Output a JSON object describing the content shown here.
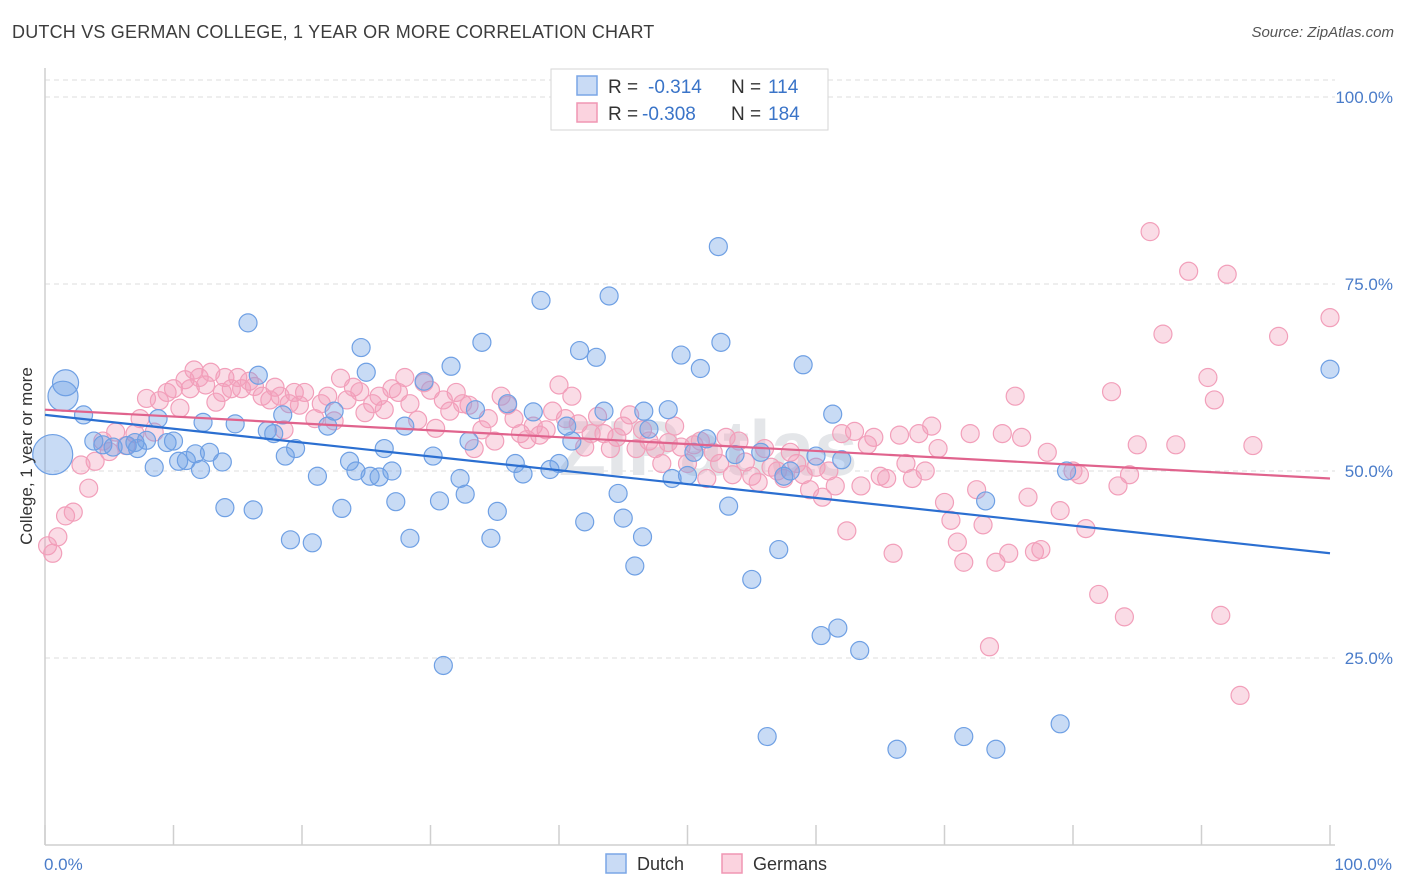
{
  "header": {
    "title": "DUTCH VS GERMAN COLLEGE, 1 YEAR OR MORE CORRELATION CHART",
    "source": "Source: ZipAtlas.com"
  },
  "watermark": "ZIPatlas",
  "legend_box": {
    "rows": [
      {
        "r_label": "R =",
        "r_value": "-0.314",
        "n_label": "N =",
        "n_value": "114"
      },
      {
        "r_label": "R =",
        "r_value": "-0.308",
        "n_label": "N =",
        "n_value": "184"
      }
    ]
  },
  "bottom_legend": [
    "Dutch",
    "Germans"
  ],
  "chart_data": {
    "type": "scatter",
    "ylabel": "College, 1 year or more",
    "xlabel": "",
    "xlim": [
      0,
      100
    ],
    "ylim": [
      0,
      100
    ],
    "x_tick_labels": [
      "0.0%",
      "100.0%"
    ],
    "y_tick_labels": [
      "25.0%",
      "50.0%",
      "75.0%",
      "100.0%"
    ],
    "y_ticks": [
      25,
      50,
      75,
      100
    ],
    "grid": true,
    "legend_position": "top-center",
    "colors": {
      "dutch": "#6fa0e4",
      "dutch_line": "#2b6fd1",
      "germans": "#f29fba",
      "germans_line": "#e0638d"
    },
    "series": [
      {
        "name": "Dutch",
        "trend": [
          [
            0,
            57.5
          ],
          [
            100,
            39.0
          ]
        ],
        "points": [
          [
            0.6,
            52.2
          ],
          [
            1.4,
            60.0
          ],
          [
            1.6,
            61.8
          ],
          [
            3.0,
            57.5
          ],
          [
            3.8,
            54.0
          ],
          [
            4.5,
            53.5
          ],
          [
            5.3,
            53.2
          ],
          [
            6.4,
            53.4
          ],
          [
            7.0,
            53.8
          ],
          [
            7.2,
            53.0
          ],
          [
            7.9,
            54.1
          ],
          [
            8.5,
            50.5
          ],
          [
            8.8,
            57.0
          ],
          [
            9.5,
            53.8
          ],
          [
            10.0,
            54.0
          ],
          [
            10.4,
            51.3
          ],
          [
            11.0,
            51.4
          ],
          [
            11.7,
            52.3
          ],
          [
            12.1,
            50.2
          ],
          [
            12.3,
            56.5
          ],
          [
            12.8,
            52.5
          ],
          [
            13.8,
            51.2
          ],
          [
            14.0,
            45.1
          ],
          [
            14.8,
            56.3
          ],
          [
            15.8,
            69.8
          ],
          [
            16.2,
            44.8
          ],
          [
            16.6,
            62.8
          ],
          [
            17.3,
            55.4
          ],
          [
            17.8,
            55.0
          ],
          [
            18.5,
            57.5
          ],
          [
            18.7,
            52.0
          ],
          [
            19.1,
            40.8
          ],
          [
            19.5,
            53.0
          ],
          [
            20.8,
            40.4
          ],
          [
            21.2,
            49.3
          ],
          [
            22.0,
            56.0
          ],
          [
            22.5,
            58.0
          ],
          [
            23.1,
            45.0
          ],
          [
            23.7,
            51.3
          ],
          [
            24.2,
            50.0
          ],
          [
            24.6,
            66.5
          ],
          [
            25.0,
            63.2
          ],
          [
            25.3,
            49.3
          ],
          [
            26.0,
            49.2
          ],
          [
            26.4,
            53.0
          ],
          [
            27.0,
            50.0
          ],
          [
            27.3,
            45.9
          ],
          [
            28.0,
            56.0
          ],
          [
            28.4,
            41.0
          ],
          [
            29.5,
            62.0
          ],
          [
            30.2,
            52.0
          ],
          [
            30.7,
            46.0
          ],
          [
            31.0,
            24.0
          ],
          [
            31.6,
            64.0
          ],
          [
            32.3,
            49.0
          ],
          [
            32.7,
            46.9
          ],
          [
            33.0,
            54.0
          ],
          [
            33.5,
            58.2
          ],
          [
            34.0,
            67.2
          ],
          [
            34.7,
            41.0
          ],
          [
            35.2,
            44.6
          ],
          [
            36.0,
            59.0
          ],
          [
            36.6,
            51.0
          ],
          [
            37.2,
            49.6
          ],
          [
            38.0,
            57.9
          ],
          [
            38.6,
            72.8
          ],
          [
            39.3,
            50.2
          ],
          [
            40.0,
            51.0
          ],
          [
            40.6,
            56.0
          ],
          [
            41.0,
            54.0
          ],
          [
            41.6,
            66.1
          ],
          [
            42.0,
            43.2
          ],
          [
            42.9,
            65.2
          ],
          [
            43.5,
            58.0
          ],
          [
            43.9,
            73.4
          ],
          [
            44.6,
            47.0
          ],
          [
            45.0,
            43.7
          ],
          [
            45.9,
            37.3
          ],
          [
            46.5,
            41.2
          ],
          [
            46.6,
            58.0
          ],
          [
            47.0,
            55.6
          ],
          [
            48.5,
            58.2
          ],
          [
            48.8,
            49.0
          ],
          [
            49.5,
            65.5
          ],
          [
            50.0,
            49.4
          ],
          [
            50.5,
            52.5
          ],
          [
            51.0,
            63.7
          ],
          [
            51.5,
            54.3
          ],
          [
            52.4,
            80.0
          ],
          [
            52.6,
            67.2
          ],
          [
            53.2,
            45.3
          ],
          [
            53.7,
            52.2
          ],
          [
            55.0,
            35.5
          ],
          [
            55.7,
            52.5
          ],
          [
            56.2,
            14.5
          ],
          [
            57.1,
            39.5
          ],
          [
            57.5,
            49.3
          ],
          [
            58.0,
            50.0
          ],
          [
            59.0,
            64.2
          ],
          [
            60.0,
            52.0
          ],
          [
            60.4,
            28.0
          ],
          [
            61.3,
            57.6
          ],
          [
            61.7,
            29.0
          ],
          [
            62.0,
            51.5
          ],
          [
            63.4,
            26.0
          ],
          [
            66.3,
            12.8
          ],
          [
            71.5,
            14.5
          ],
          [
            73.2,
            46.0
          ],
          [
            74.0,
            12.8
          ],
          [
            79.0,
            16.2
          ],
          [
            79.5,
            50.0
          ],
          [
            100.0,
            63.6
          ]
        ]
      },
      {
        "name": "Germans",
        "trend": [
          [
            0,
            58.2
          ],
          [
            100,
            49.0
          ]
        ],
        "points": [
          [
            0.2,
            40.0
          ],
          [
            0.6,
            39.0
          ],
          [
            1.0,
            41.2
          ],
          [
            1.6,
            44.0
          ],
          [
            2.2,
            44.5
          ],
          [
            2.8,
            50.8
          ],
          [
            3.4,
            47.7
          ],
          [
            3.9,
            51.3
          ],
          [
            4.5,
            54.0
          ],
          [
            5.0,
            52.6
          ],
          [
            5.5,
            55.2
          ],
          [
            6.3,
            53.4
          ],
          [
            7.0,
            55.0
          ],
          [
            7.4,
            57.0
          ],
          [
            7.9,
            59.7
          ],
          [
            8.5,
            55.2
          ],
          [
            8.9,
            59.4
          ],
          [
            9.5,
            60.5
          ],
          [
            10.0,
            61.0
          ],
          [
            10.5,
            58.4
          ],
          [
            10.9,
            62.2
          ],
          [
            11.3,
            61.0
          ],
          [
            11.6,
            63.5
          ],
          [
            12.0,
            62.5
          ],
          [
            12.5,
            61.5
          ],
          [
            12.9,
            63.2
          ],
          [
            13.3,
            59.2
          ],
          [
            13.8,
            60.5
          ],
          [
            14.0,
            62.5
          ],
          [
            14.5,
            61.0
          ],
          [
            15.0,
            62.5
          ],
          [
            15.3,
            61.0
          ],
          [
            15.9,
            62.0
          ],
          [
            16.3,
            61.3
          ],
          [
            16.9,
            60.0
          ],
          [
            17.5,
            59.5
          ],
          [
            17.9,
            61.2
          ],
          [
            18.3,
            60.0
          ],
          [
            18.6,
            55.5
          ],
          [
            19.0,
            59.0
          ],
          [
            19.4,
            60.5
          ],
          [
            19.8,
            58.8
          ],
          [
            20.2,
            60.5
          ],
          [
            21.0,
            57.0
          ],
          [
            21.5,
            59.0
          ],
          [
            22.0,
            60.0
          ],
          [
            22.5,
            56.7
          ],
          [
            23.0,
            62.4
          ],
          [
            23.5,
            59.5
          ],
          [
            24.0,
            61.2
          ],
          [
            24.5,
            60.6
          ],
          [
            24.9,
            57.8
          ],
          [
            25.5,
            59.0
          ],
          [
            26.0,
            60.0
          ],
          [
            26.4,
            58.2
          ],
          [
            27.0,
            61.0
          ],
          [
            27.5,
            60.5
          ],
          [
            28.0,
            62.5
          ],
          [
            28.4,
            59.0
          ],
          [
            29.0,
            56.8
          ],
          [
            29.5,
            61.8
          ],
          [
            30.0,
            60.8
          ],
          [
            30.4,
            55.7
          ],
          [
            31.0,
            59.5
          ],
          [
            31.5,
            58.0
          ],
          [
            32.0,
            60.5
          ],
          [
            32.5,
            59.0
          ],
          [
            33.0,
            58.8
          ],
          [
            33.4,
            53.0
          ],
          [
            34.0,
            55.5
          ],
          [
            34.5,
            57.0
          ],
          [
            35.0,
            54.0
          ],
          [
            35.5,
            60.0
          ],
          [
            36.0,
            58.8
          ],
          [
            36.5,
            57.0
          ],
          [
            37.0,
            55.0
          ],
          [
            37.5,
            54.2
          ],
          [
            38.0,
            56.0
          ],
          [
            38.5,
            54.8
          ],
          [
            39.0,
            55.5
          ],
          [
            39.5,
            58.0
          ],
          [
            40.0,
            61.5
          ],
          [
            40.5,
            57.0
          ],
          [
            41.0,
            60.0
          ],
          [
            41.5,
            56.3
          ],
          [
            42.0,
            53.2
          ],
          [
            42.5,
            55.0
          ],
          [
            43.0,
            57.3
          ],
          [
            43.5,
            55.0
          ],
          [
            44.0,
            53.0
          ],
          [
            44.5,
            54.5
          ],
          [
            45.0,
            56.0
          ],
          [
            45.5,
            57.5
          ],
          [
            46.0,
            53.0
          ],
          [
            46.5,
            55.5
          ],
          [
            47.0,
            54.0
          ],
          [
            47.5,
            53.0
          ],
          [
            48.0,
            51.0
          ],
          [
            48.5,
            53.8
          ],
          [
            49.0,
            56.0
          ],
          [
            49.5,
            53.2
          ],
          [
            50.0,
            51.0
          ],
          [
            50.5,
            53.5
          ],
          [
            51.0,
            54.0
          ],
          [
            51.5,
            49.0
          ],
          [
            52.0,
            52.5
          ],
          [
            52.5,
            51.0
          ],
          [
            53.0,
            54.5
          ],
          [
            53.5,
            49.5
          ],
          [
            54.0,
            54.0
          ],
          [
            54.5,
            51.2
          ],
          [
            55.0,
            49.3
          ],
          [
            55.5,
            48.5
          ],
          [
            56.0,
            53.0
          ],
          [
            56.5,
            50.5
          ],
          [
            57.0,
            50.0
          ],
          [
            57.5,
            49.0
          ],
          [
            58.0,
            52.5
          ],
          [
            58.5,
            51.0
          ],
          [
            59.0,
            49.5
          ],
          [
            59.5,
            47.5
          ],
          [
            60.0,
            50.5
          ],
          [
            60.5,
            46.5
          ],
          [
            61.0,
            50.0
          ],
          [
            61.5,
            48.0
          ],
          [
            62.0,
            55.0
          ],
          [
            62.4,
            42.0
          ],
          [
            63.0,
            55.3
          ],
          [
            63.5,
            48.0
          ],
          [
            64.0,
            53.5
          ],
          [
            64.5,
            54.5
          ],
          [
            65.0,
            49.3
          ],
          [
            65.5,
            49.0
          ],
          [
            66.0,
            39.0
          ],
          [
            66.5,
            54.8
          ],
          [
            67.0,
            51.0
          ],
          [
            67.5,
            49.0
          ],
          [
            68.0,
            55.0
          ],
          [
            68.5,
            50.0
          ],
          [
            69.0,
            56.0
          ],
          [
            69.5,
            53.0
          ],
          [
            70.0,
            45.8
          ],
          [
            70.5,
            43.4
          ],
          [
            71.0,
            40.5
          ],
          [
            71.5,
            37.8
          ],
          [
            72.0,
            55.0
          ],
          [
            72.5,
            47.5
          ],
          [
            73.0,
            42.8
          ],
          [
            73.5,
            26.5
          ],
          [
            74.0,
            37.8
          ],
          [
            74.5,
            55.0
          ],
          [
            75.0,
            39.0
          ],
          [
            75.5,
            60.0
          ],
          [
            76.0,
            54.5
          ],
          [
            76.5,
            46.5
          ],
          [
            77.0,
            39.2
          ],
          [
            77.5,
            39.5
          ],
          [
            78.0,
            52.5
          ],
          [
            79.0,
            44.7
          ],
          [
            80.0,
            50.0
          ],
          [
            80.5,
            49.5
          ],
          [
            81.0,
            42.3
          ],
          [
            82.0,
            33.5
          ],
          [
            83.0,
            60.6
          ],
          [
            83.5,
            48.0
          ],
          [
            84.0,
            30.5
          ],
          [
            84.4,
            49.5
          ],
          [
            85.0,
            53.5
          ],
          [
            86.0,
            82.0
          ],
          [
            87.0,
            68.3
          ],
          [
            88.0,
            53.5
          ],
          [
            89.0,
            76.7
          ],
          [
            90.5,
            62.5
          ],
          [
            91.0,
            59.5
          ],
          [
            91.5,
            30.7
          ],
          [
            92.0,
            76.3
          ],
          [
            93.0,
            20.0
          ],
          [
            94.0,
            53.4
          ],
          [
            96.0,
            68.0
          ],
          [
            100.0,
            70.5
          ]
        ]
      }
    ]
  }
}
